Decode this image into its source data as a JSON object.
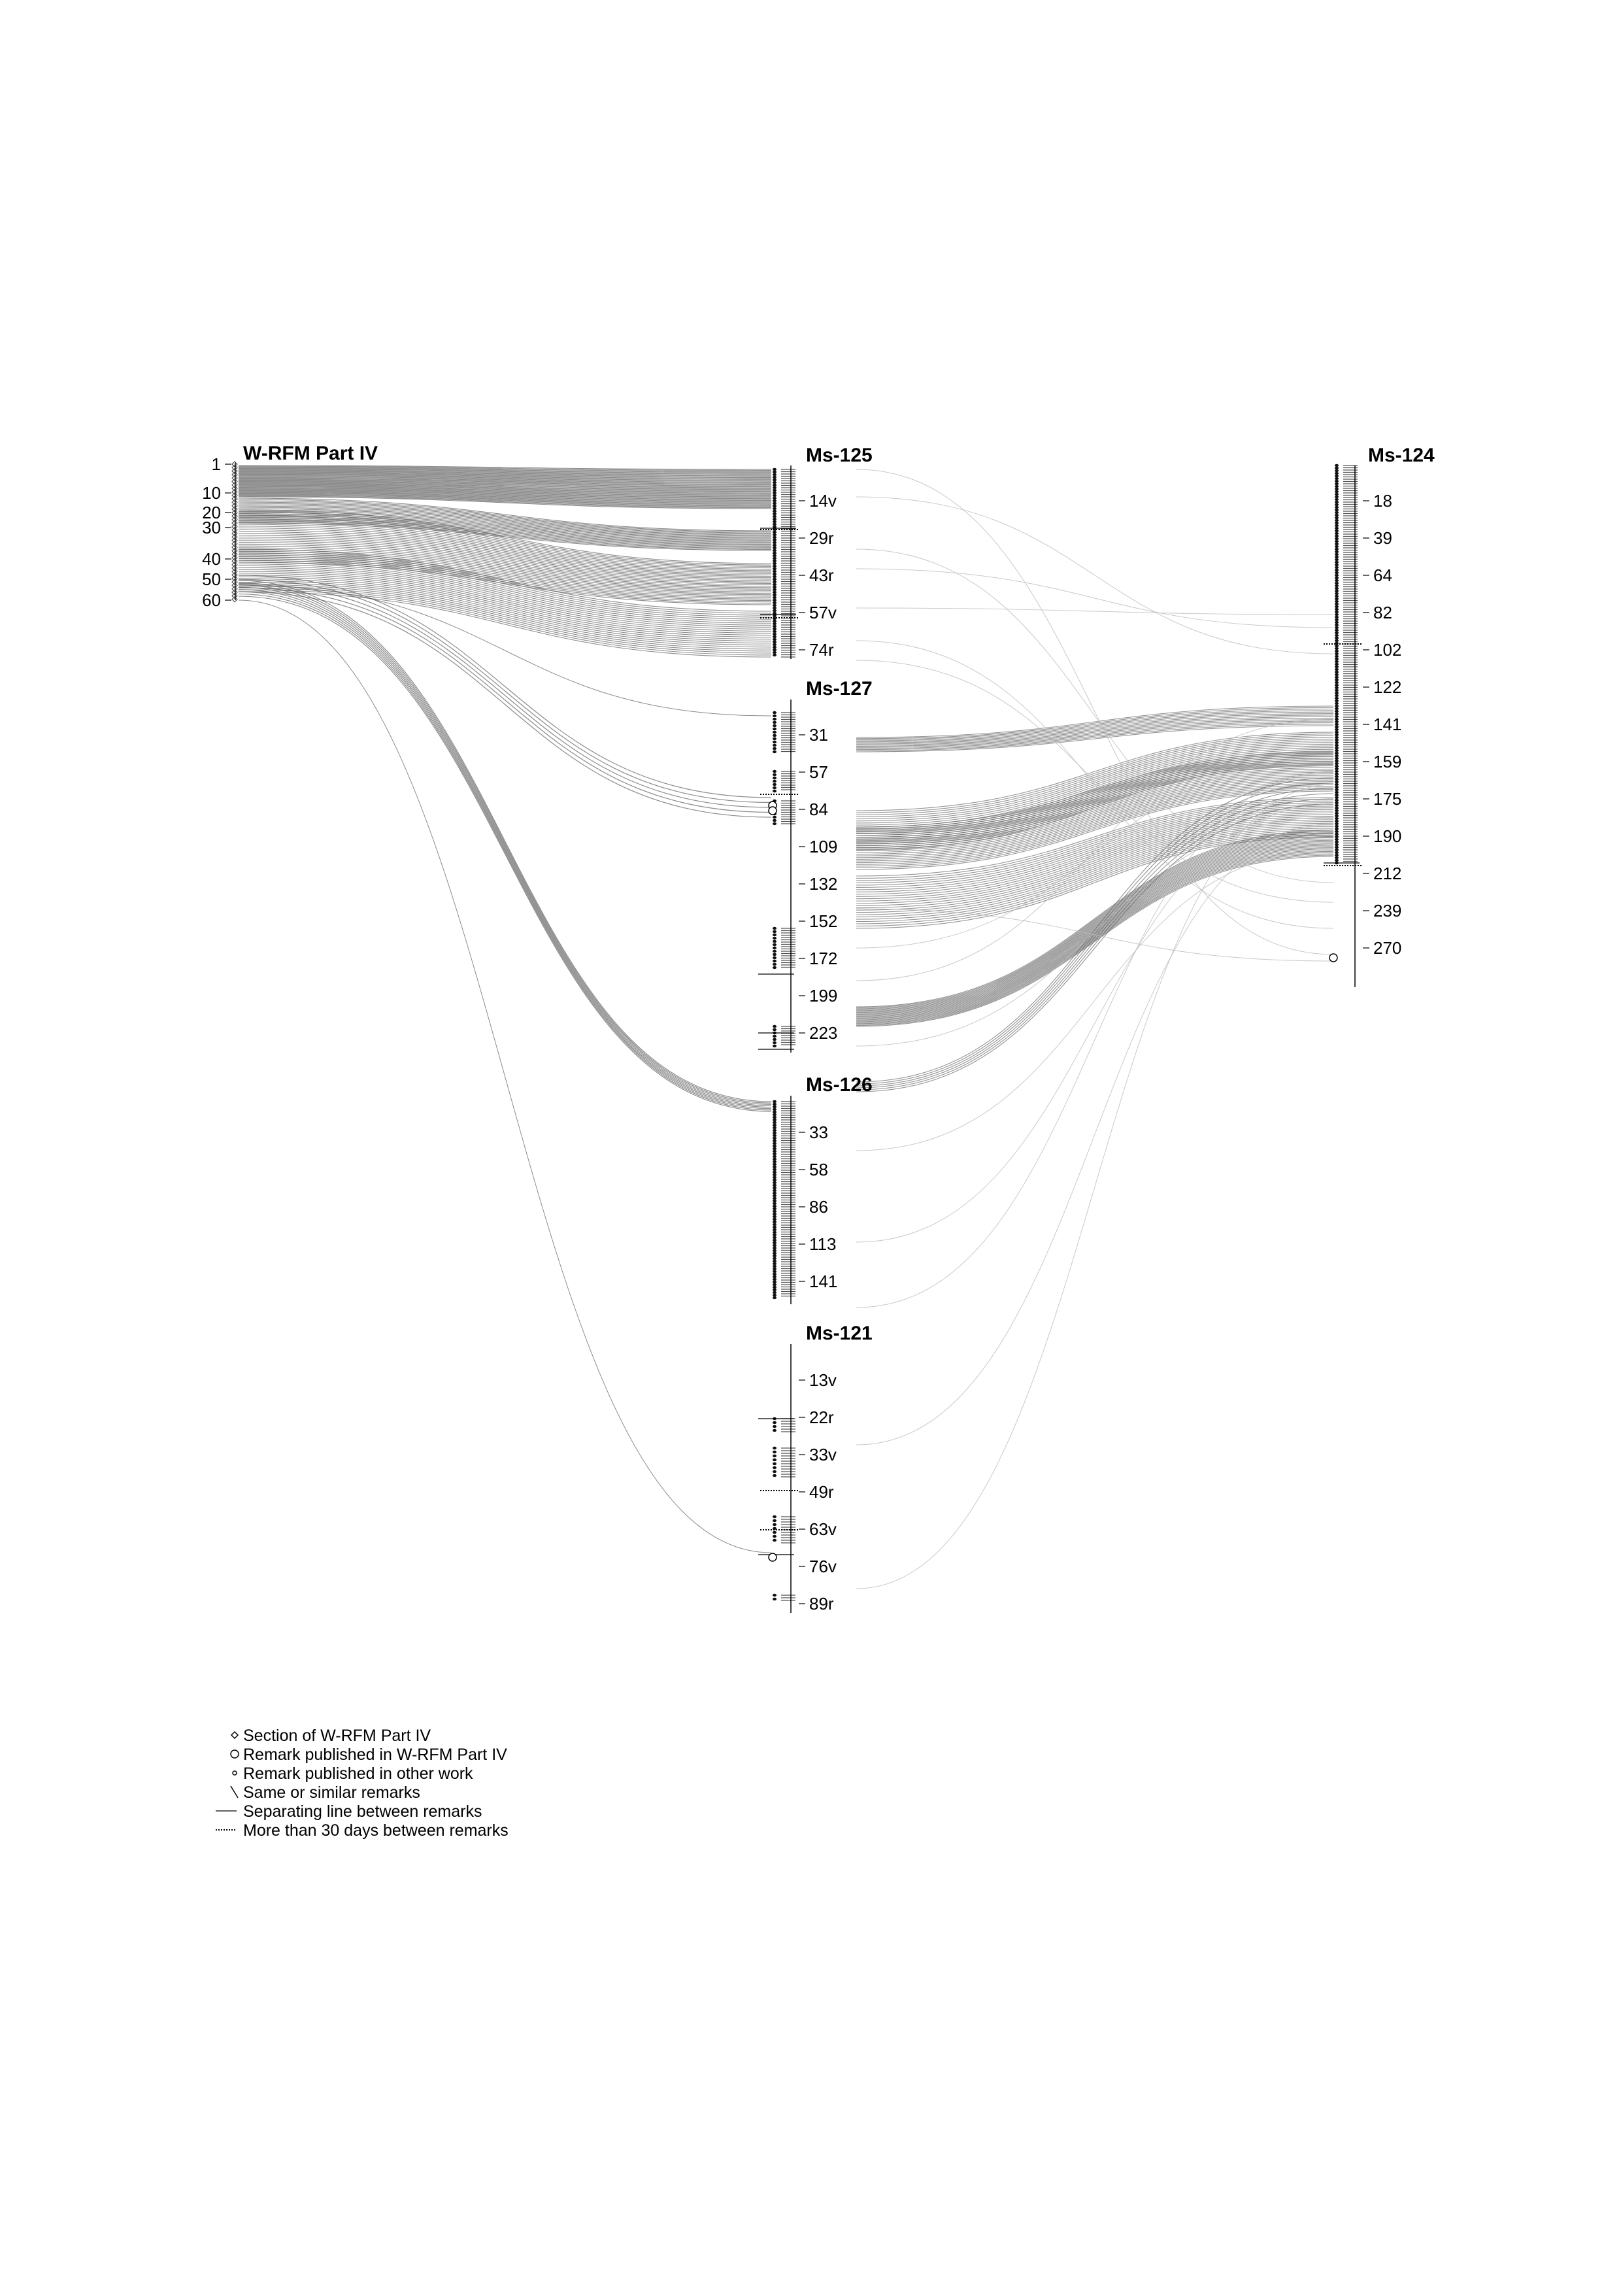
{
  "source": {
    "title": "W-RFM Part IV",
    "ticks": [
      "1",
      "10",
      "20",
      "30",
      "40",
      "50",
      "60"
    ]
  },
  "manuscripts": [
    {
      "id": "ms125",
      "title": "Ms-125",
      "ticks": [
        "14v",
        "29r",
        "43r",
        "57v",
        "74r"
      ]
    },
    {
      "id": "ms127",
      "title": "Ms-127",
      "ticks": [
        "31",
        "57",
        "84",
        "109",
        "132",
        "152",
        "172",
        "199",
        "223"
      ]
    },
    {
      "id": "ms126",
      "title": "Ms-126",
      "ticks": [
        "33",
        "58",
        "86",
        "113",
        "141"
      ]
    },
    {
      "id": "ms121",
      "title": "Ms-121",
      "ticks": [
        "13v",
        "22r",
        "33v",
        "49r",
        "63v",
        "76v",
        "89r"
      ]
    },
    {
      "id": "ms124",
      "title": "Ms-124",
      "ticks": [
        "18",
        "39",
        "64",
        "82",
        "102",
        "122",
        "141",
        "159",
        "175",
        "190",
        "212",
        "239",
        "270"
      ]
    }
  ],
  "legend": [
    {
      "symbol": "diamond",
      "label": "Section of W-RFM Part IV"
    },
    {
      "symbol": "circle-large",
      "label": "Remark published in W-RFM Part IV"
    },
    {
      "symbol": "circle-small",
      "label": "Remark published in other work"
    },
    {
      "symbol": "slash",
      "label": "Same or similar remarks"
    },
    {
      "symbol": "solid-line",
      "label": "Separating line between remarks"
    },
    {
      "symbol": "dotted-line",
      "label": "More than 30 days between remarks"
    }
  ],
  "colors": {
    "ink": "#000000",
    "flow": "#777777",
    "faint": "#bbbbbb"
  }
}
